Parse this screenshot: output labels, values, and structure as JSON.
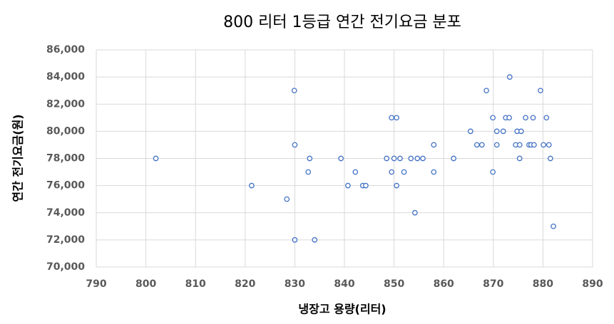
{
  "chart_data": {
    "type": "scatter",
    "title": "800 리터 1등급 연간 전기요금 분포",
    "x_label": "냉장고 용량(리터)",
    "y_label": "연간 전기요금(원)",
    "color": "#4472c4",
    "x": [
      802,
      821.3,
      828.4,
      829.9,
      830,
      830,
      833,
      832.7,
      834,
      839.3,
      840.7,
      842.2,
      843.7,
      844.3,
      848.5,
      849.5,
      849.5,
      850,
      850.5,
      850.5,
      851.2,
      852,
      853.4,
      854.2,
      854.7,
      855.8,
      858,
      858,
      862,
      865.4,
      866.7,
      867.7,
      868.6,
      869.9,
      869.9,
      870.7,
      870.7,
      872,
      872.5,
      873.2,
      873.3,
      874.5,
      874.8,
      875.3,
      875.3,
      875.6,
      876.5,
      877.2,
      877.6,
      878,
      878.2,
      879.5,
      880.1,
      880.7,
      881.2,
      881.5,
      882.1
    ],
    "values": [
      78000,
      76000,
      75000,
      83000,
      79000,
      72000,
      78000,
      77000,
      72000,
      78000,
      76000,
      77000,
      76000,
      76000,
      78000,
      81000,
      77000,
      78000,
      81000,
      76000,
      78000,
      77000,
      78000,
      74000,
      78000,
      78000,
      79000,
      77000,
      78000,
      80000,
      79000,
      79000,
      83000,
      81000,
      77000,
      80000,
      79000,
      80000,
      81000,
      81000,
      84000,
      79000,
      80000,
      78000,
      79000,
      80000,
      81000,
      79000,
      79000,
      81000,
      79000,
      83000,
      79000,
      81000,
      79000,
      78000,
      73000
    ],
    "xlim": [
      790,
      890
    ],
    "xticks": [
      790,
      800,
      810,
      820,
      830,
      840,
      850,
      860,
      870,
      880,
      890
    ],
    "ylim": [
      70000,
      86000
    ],
    "yticks": [
      {
        "value": 70000,
        "label": "70,000"
      },
      {
        "value": 72000,
        "label": "72,000"
      },
      {
        "value": 74000,
        "label": "74,000"
      },
      {
        "value": 76000,
        "label": "76,000"
      },
      {
        "value": 78000,
        "label": "78,000"
      },
      {
        "value": 80000,
        "label": "80,000"
      },
      {
        "value": 82000,
        "label": "82,000"
      },
      {
        "value": 84000,
        "label": "84,000"
      },
      {
        "value": 86000,
        "label": "86,000"
      }
    ],
    "grid": true
  }
}
